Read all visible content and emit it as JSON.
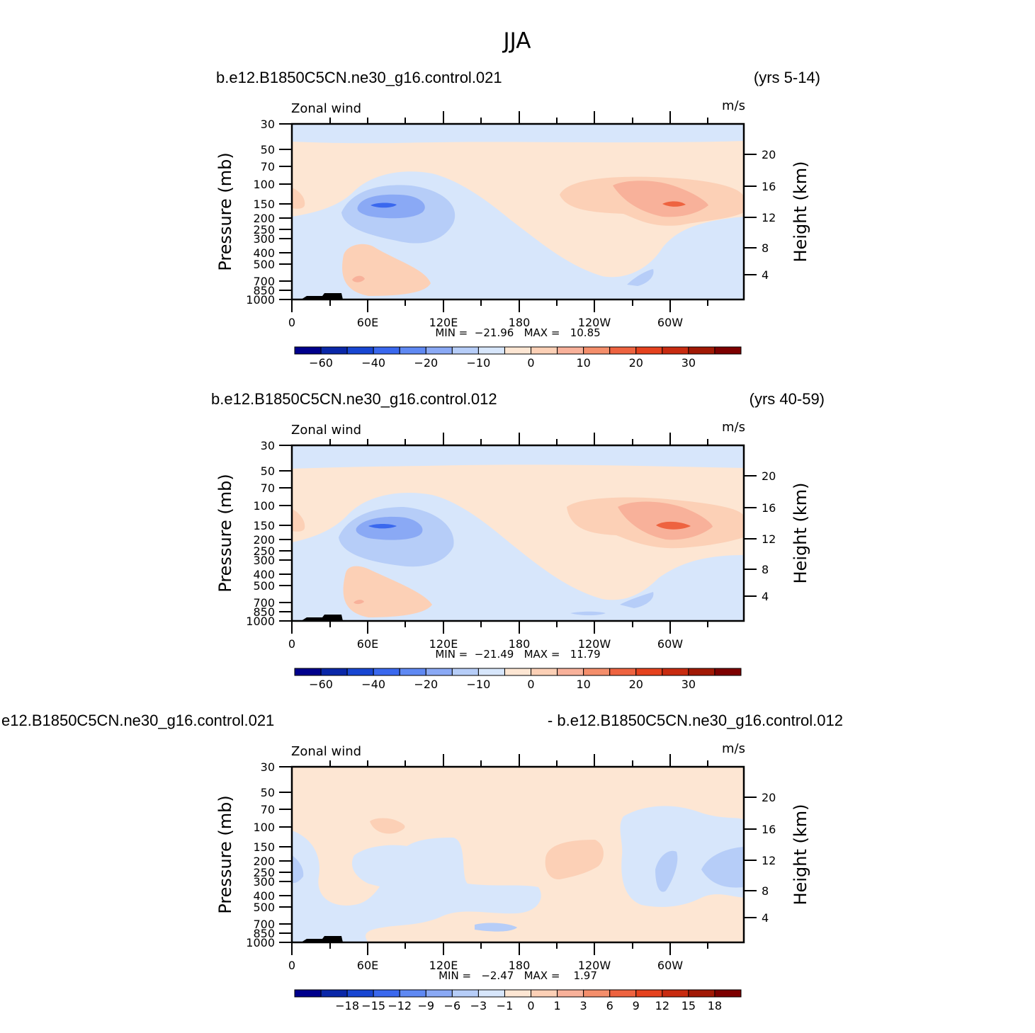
{
  "page": {
    "title": "JJA"
  },
  "chart_data": [
    {
      "type": "heatmap",
      "left_title": "b.e12.B1850C5CN.ne30_g16.control.021",
      "right_title": "(yrs 5-14)",
      "variable": "Zonal wind",
      "units": "m/s",
      "ylabel": "Pressure (mb)",
      "ylabel_right": "Height (km)",
      "x_ticks": [
        "0",
        "60E",
        "120E",
        "180",
        "120W",
        "60W"
      ],
      "y_ticks": [
        "30",
        "50",
        "70",
        "100",
        "150",
        "200",
        "250",
        "300",
        "400",
        "500",
        "700",
        "850",
        "1000"
      ],
      "y_ticks_right": [
        "20",
        "16",
        "12",
        "8",
        "4"
      ],
      "min_max_text": "MIN =  −21.96   MAX =   10.85",
      "min": -21.96,
      "max": 10.85,
      "colorbar": {
        "colors": [
          "#00008c",
          "#0a27a8",
          "#1846d2",
          "#3a68ee",
          "#5f89f3",
          "#8aa9f5",
          "#b6cdf8",
          "#d7e6fb",
          "#fde6d3",
          "#fcd0b6",
          "#f8b19a",
          "#f48e6b",
          "#ee6340",
          "#e5421e",
          "#c82b10",
          "#a11905",
          "#7d0000"
        ],
        "labels": [
          "−60",
          "−40",
          "−20",
          "−10",
          "0",
          "10",
          "20",
          "30"
        ]
      }
    },
    {
      "type": "heatmap",
      "left_title": "b.e12.B1850C5CN.ne30_g16.control.012",
      "right_title": "(yrs 40-59)",
      "variable": "Zonal wind",
      "units": "m/s",
      "ylabel": "Pressure (mb)",
      "ylabel_right": "Height (km)",
      "x_ticks": [
        "0",
        "60E",
        "120E",
        "180",
        "120W",
        "60W"
      ],
      "y_ticks": [
        "30",
        "50",
        "70",
        "100",
        "150",
        "200",
        "250",
        "300",
        "400",
        "500",
        "700",
        "850",
        "1000"
      ],
      "y_ticks_right": [
        "20",
        "16",
        "12",
        "8",
        "4"
      ],
      "min_max_text": "MIN =  −21.49   MAX =   11.79",
      "min": -21.49,
      "max": 11.79,
      "colorbar": {
        "colors": [
          "#00008c",
          "#0a27a8",
          "#1846d2",
          "#3a68ee",
          "#5f89f3",
          "#8aa9f5",
          "#b6cdf8",
          "#d7e6fb",
          "#fde6d3",
          "#fcd0b6",
          "#f8b19a",
          "#f48e6b",
          "#ee6340",
          "#e5421e",
          "#c82b10",
          "#a11905",
          "#7d0000"
        ],
        "labels": [
          "−60",
          "−40",
          "−20",
          "−10",
          "0",
          "10",
          "20",
          "30"
        ]
      }
    },
    {
      "type": "heatmap",
      "left_title": "e12.B1850C5CN.ne30_g16.control.021",
      "right_title": "- b.e12.B1850C5CN.ne30_g16.control.012",
      "variable": "Zonal wind",
      "units": "m/s",
      "ylabel": "Pressure (mb)",
      "ylabel_right": "Height (km)",
      "x_ticks": [
        "0",
        "60E",
        "120E",
        "180",
        "120W",
        "60W"
      ],
      "y_ticks": [
        "30",
        "50",
        "70",
        "100",
        "150",
        "200",
        "250",
        "300",
        "400",
        "500",
        "700",
        "850",
        "1000"
      ],
      "y_ticks_right": [
        "20",
        "16",
        "12",
        "8",
        "4"
      ],
      "min_max_text": "MIN =   −2.47   MAX =    1.97",
      "min": -2.47,
      "max": 1.97,
      "colorbar": {
        "colors": [
          "#00008c",
          "#0a27a8",
          "#1846d2",
          "#3a68ee",
          "#5f89f3",
          "#8aa9f5",
          "#b6cdf8",
          "#d7e6fb",
          "#fde6d3",
          "#fcd0b6",
          "#f8b19a",
          "#f48e6b",
          "#ee6340",
          "#e5421e",
          "#c82b10",
          "#a11905",
          "#7d0000"
        ],
        "labels": [
          "−18",
          "−15",
          "−12",
          "−9",
          "−6",
          "−3",
          "−1",
          "0",
          "1",
          "3",
          "6",
          "9",
          "12",
          "15",
          "18"
        ]
      }
    }
  ]
}
